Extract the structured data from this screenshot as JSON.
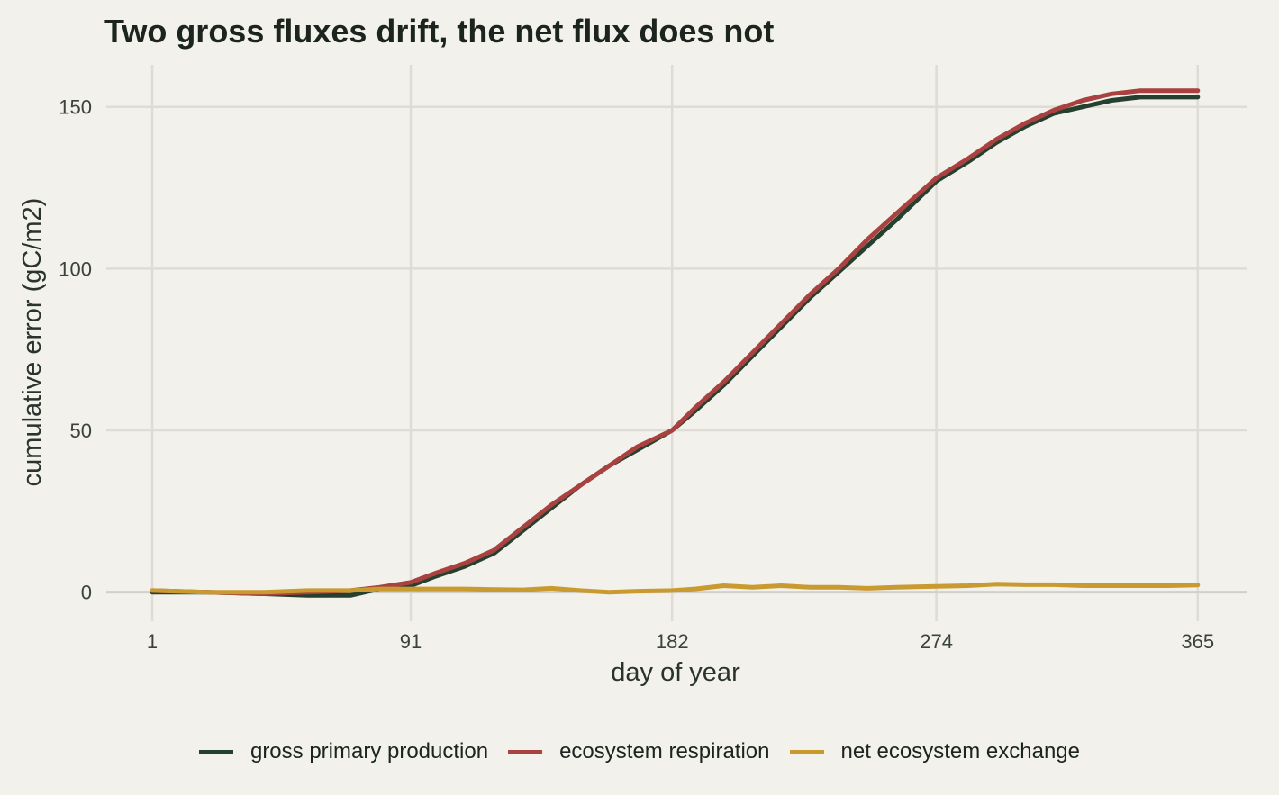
{
  "chart_data": {
    "type": "line",
    "title": "Two gross fluxes drift, the net flux does not",
    "xlabel": "day of year",
    "ylabel": "cumulative error (gC/m2)",
    "xlim": [
      -15,
      382
    ],
    "ylim": [
      -9,
      163
    ],
    "xticks": [
      1,
      91,
      182,
      274,
      365
    ],
    "yticks": [
      0,
      50,
      100,
      150
    ],
    "grid": true,
    "legend_position": "bottom",
    "x": [
      1,
      20,
      40,
      55,
      70,
      80,
      91,
      100,
      110,
      120,
      130,
      140,
      150,
      160,
      170,
      182,
      190,
      200,
      210,
      220,
      230,
      240,
      250,
      260,
      274,
      285,
      295,
      305,
      315,
      325,
      335,
      345,
      355,
      365
    ],
    "series": [
      {
        "name": "gross primary production",
        "color": "#25402f",
        "values": [
          0,
          0,
          -0.5,
          -1,
          -1,
          1,
          2,
          5,
          8,
          12,
          19,
          26,
          33,
          39,
          44,
          50,
          56,
          64,
          73,
          82,
          91,
          99,
          107,
          115,
          127,
          133,
          139,
          144,
          148,
          150,
          152,
          153,
          153,
          153
        ]
      },
      {
        "name": "ecosystem respiration",
        "color": "#a8413f",
        "values": [
          0.5,
          0,
          -0.5,
          0,
          0.5,
          1.5,
          3,
          6,
          9,
          13,
          20,
          27,
          33,
          39,
          45,
          50,
          57,
          65,
          74,
          83,
          92,
          100,
          109,
          117,
          128,
          134,
          140,
          145,
          149,
          152,
          154,
          155,
          155,
          155
        ]
      },
      {
        "name": "net ecosystem exchange",
        "color": "#c99a30",
        "values": [
          0.5,
          0,
          0,
          0.5,
          0.5,
          1,
          1,
          1,
          1,
          0.8,
          0.7,
          1.2,
          0.5,
          0,
          0.3,
          0.5,
          1,
          2,
          1.5,
          2,
          1.5,
          1.5,
          1.2,
          1.5,
          1.8,
          2,
          2.5,
          2.3,
          2.3,
          2,
          2,
          2,
          2,
          2.2
        ]
      }
    ]
  }
}
